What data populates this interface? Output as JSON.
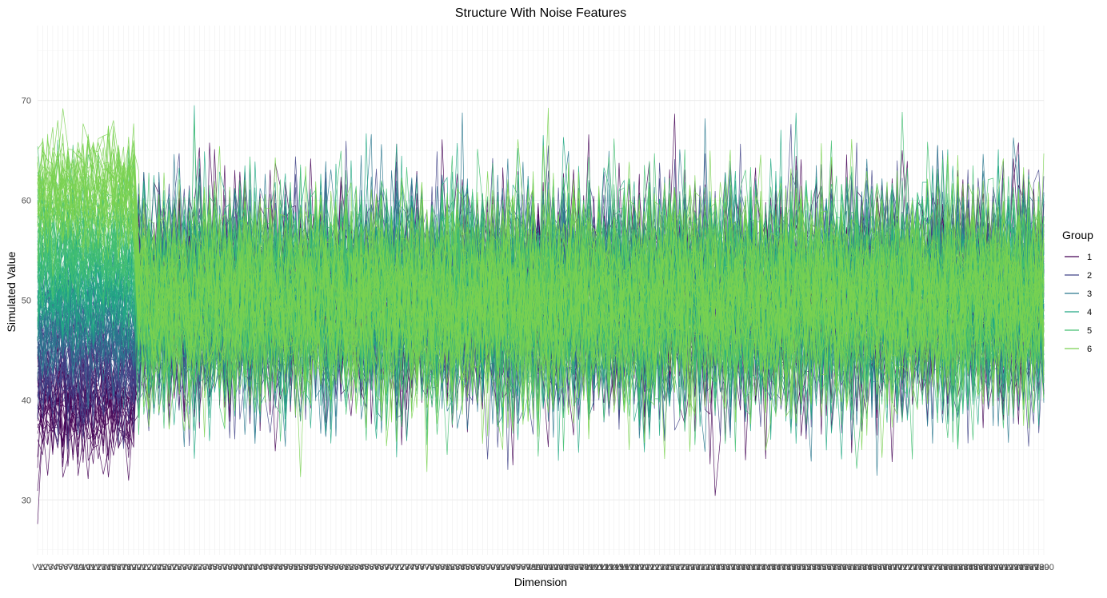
{
  "chart_data": {
    "type": "line",
    "title": "Structure With Noise Features",
    "xlabel": "Dimension",
    "ylabel": "Simulated Value",
    "ylim": [
      24.5,
      77.5
    ],
    "y_ticks": [
      30,
      40,
      50,
      60,
      70
    ],
    "x_range": [
      1,
      200
    ],
    "x_tick_prefix": "V",
    "grid": true,
    "legend": {
      "title": "Group",
      "placement": "right",
      "entries": [
        "1",
        "2",
        "3",
        "4",
        "5",
        "6"
      ]
    },
    "series": [
      {
        "name": "1",
        "color": "#440154",
        "structured_dims": 20,
        "structured_mean": 40,
        "noise_mean": 50
      },
      {
        "name": "2",
        "color": "#414487",
        "structured_dims": 20,
        "structured_mean": 44,
        "noise_mean": 50
      },
      {
        "name": "3",
        "color": "#2A788E",
        "structured_dims": 20,
        "structured_mean": 48,
        "noise_mean": 50
      },
      {
        "name": "4",
        "color": "#22A884",
        "structured_dims": 20,
        "structured_mean": 52,
        "noise_mean": 50
      },
      {
        "name": "5",
        "color": "#43BF71",
        "structured_dims": 20,
        "structured_mean": 56,
        "noise_mean": 50
      },
      {
        "name": "6",
        "color": "#7AD151",
        "structured_dims": 20,
        "structured_mean": 61,
        "noise_mean": 50
      }
    ]
  }
}
